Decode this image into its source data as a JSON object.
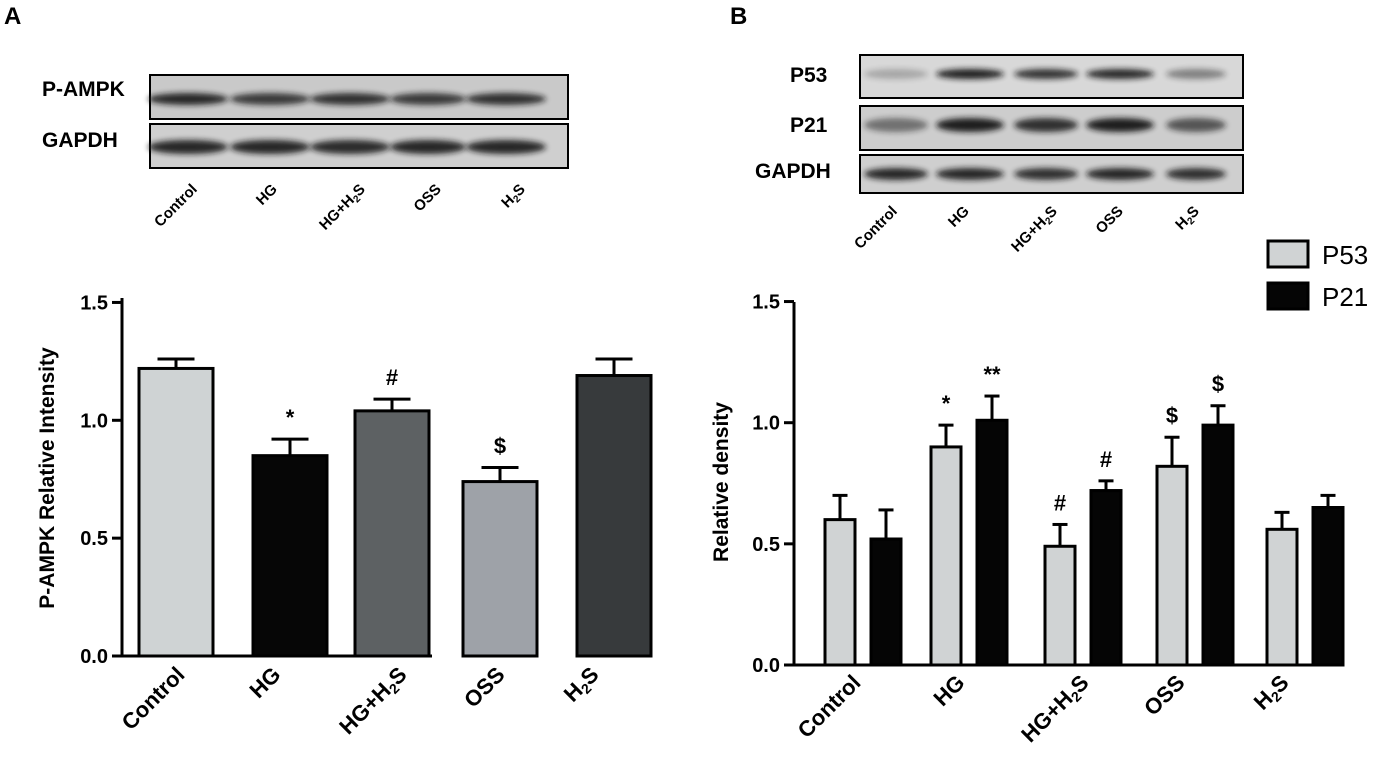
{
  "panels": [
    {
      "letter": "A",
      "blot": {
        "rows": [
          "P-AMPK",
          "GAPDH"
        ],
        "lanes": [
          "Control",
          "HG",
          "HG+H2S",
          "OSS",
          "H2S"
        ]
      },
      "chart_data": {
        "type": "bar",
        "ylabel": "P-AMPK Relative Intensity",
        "ylim": [
          0,
          1.5
        ],
        "yticks": [
          "0.0",
          "0.5",
          "1.0",
          "1.5"
        ],
        "categories": [
          "Control",
          "HG",
          "HG+H2S",
          "OSS",
          "H2S"
        ],
        "values": [
          1.22,
          0.85,
          1.04,
          0.74,
          1.19
        ],
        "errors": [
          0.04,
          0.07,
          0.05,
          0.06,
          0.07
        ],
        "significance": [
          "",
          "*",
          "#",
          "$",
          ""
        ],
        "colors": [
          "#cfd3d4",
          "#060606",
          "#5d6163",
          "#9ea2a8",
          "#373a3c"
        ]
      }
    },
    {
      "letter": "B",
      "blot": {
        "rows": [
          "P53",
          "P21",
          "GAPDH"
        ],
        "lanes": [
          "Control",
          "HG",
          "HG+H2S",
          "OSS",
          "H2S"
        ]
      },
      "chart_data": {
        "type": "bar",
        "ylabel": "Relative density",
        "ylim": [
          0,
          1.5
        ],
        "yticks": [
          "0.0",
          "0.5",
          "1.0",
          "1.5"
        ],
        "categories": [
          "Control",
          "HG",
          "HG+H2S",
          "OSS",
          "H2S"
        ],
        "legend_position": "top-right",
        "series": [
          {
            "name": "P53",
            "color": "#d0d3d4",
            "values": [
              0.6,
              0.9,
              0.49,
              0.82,
              0.56
            ],
            "errors": [
              0.1,
              0.09,
              0.09,
              0.12,
              0.07
            ],
            "significance": [
              "",
              "*",
              "#",
              "$",
              ""
            ]
          },
          {
            "name": "P21",
            "color": "#050505",
            "values": [
              0.52,
              1.01,
              0.72,
              0.99,
              0.65
            ],
            "errors": [
              0.12,
              0.1,
              0.04,
              0.08,
              0.05
            ],
            "significance": [
              "",
              "**",
              "#",
              "$",
              ""
            ]
          }
        ]
      }
    }
  ]
}
